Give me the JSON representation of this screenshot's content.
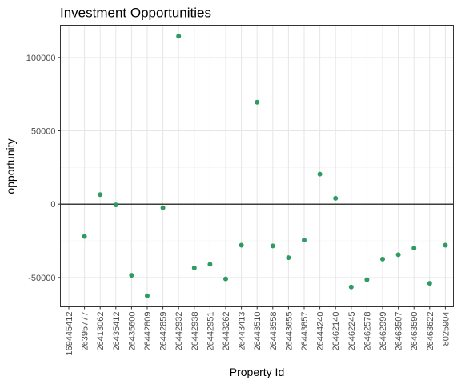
{
  "chart_data": {
    "type": "scatter",
    "title": "Investment Opportunities",
    "xlabel": "Property Id",
    "ylabel": "opportunity",
    "categories": [
      "169445412",
      "26395777",
      "26413062",
      "26435412",
      "26435600",
      "26442809",
      "26442859",
      "26442932",
      "26442938",
      "26442951",
      "26443262",
      "26443413",
      "26443510",
      "26443558",
      "26443655",
      "26443857",
      "26444240",
      "26462140",
      "26462245",
      "26462578",
      "26462999",
      "26463507",
      "26463590",
      "26463622",
      "8025904"
    ],
    "series": [
      {
        "x": [
          "26395777",
          "26413062",
          "26435412",
          "26435600",
          "26442809",
          "26442859",
          "26442932",
          "26442938",
          "26442951",
          "26443262",
          "26443413",
          "26443510",
          "26443558",
          "26443655",
          "26443857",
          "26444240",
          "26462140",
          "26462245",
          "26462578",
          "26462999",
          "26463507",
          "26463590",
          "26463622",
          "8025904"
        ],
        "values": [
          -22000,
          6500,
          -500,
          -48500,
          -62500,
          -2500,
          114500,
          -43500,
          -41000,
          -51000,
          -28000,
          69500,
          -28500,
          -36500,
          -24500,
          20500,
          4000,
          -56500,
          -51500,
          -37500,
          -34500,
          -30000,
          -54000,
          -28000
        ],
        "color": "#2e9b63"
      }
    ],
    "yticks": [
      -50000,
      0,
      50000,
      100000
    ],
    "ytick_labels": [
      "-50000",
      "0",
      "50000",
      "100000"
    ],
    "ylim": [
      -70000,
      122000
    ],
    "reference_line_y": 0,
    "grid": true
  }
}
